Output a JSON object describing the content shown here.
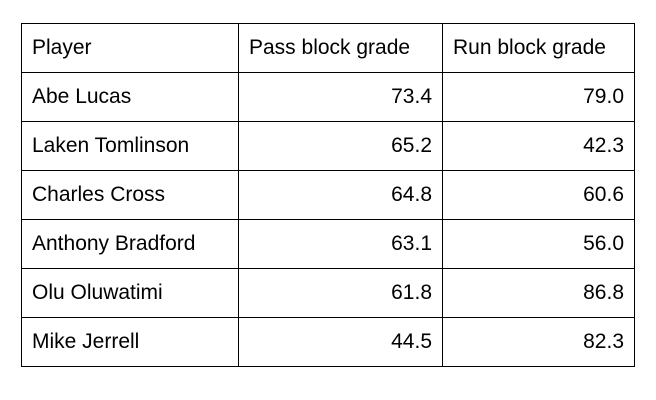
{
  "table": {
    "headers": {
      "player": "Player",
      "pass_block": "Pass block grade",
      "run_block": "Run block grade"
    },
    "rows": [
      {
        "player": "Abe Lucas",
        "pass_block": "73.4",
        "run_block": "79.0"
      },
      {
        "player": "Laken Tomlinson",
        "pass_block": "65.2",
        "run_block": "42.3"
      },
      {
        "player": "Charles Cross",
        "pass_block": "64.8",
        "run_block": "60.6"
      },
      {
        "player": "Anthony Bradford",
        "pass_block": "63.1",
        "run_block": "56.0"
      },
      {
        "player": "Olu Oluwatimi",
        "pass_block": "61.8",
        "run_block": "86.8"
      },
      {
        "player": "Mike Jerrell",
        "pass_block": "44.5",
        "run_block": "82.3"
      }
    ]
  }
}
